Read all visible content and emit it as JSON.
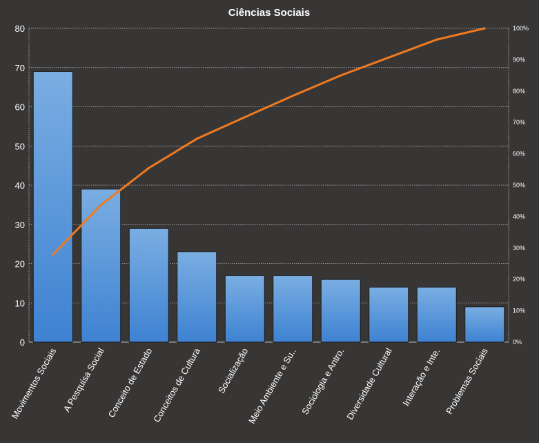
{
  "chart_data": {
    "type": "bar",
    "title": "Ciências Sociais",
    "categories": [
      "Movimentos Sociais",
      "A Pesquisa Social",
      "Conceito de Estado",
      "Conceitos de Cultura",
      "Socialização",
      "Meio Ambiente e Su..",
      "Sociologia e Antro.",
      "Diversidade Cultural",
      "Interação e Inte.",
      "Problemas Sociais"
    ],
    "series": [
      {
        "type": "bar",
        "axis": "left",
        "values": [
          69,
          39,
          29,
          23,
          17,
          17,
          16,
          14,
          14,
          9
        ]
      },
      {
        "type": "line",
        "axis": "right",
        "values": [
          27.9,
          43.7,
          55.5,
          64.8,
          71.7,
          78.5,
          85.0,
          90.7,
          96.4,
          100.0
        ]
      }
    ],
    "y_left": {
      "ylim": [
        0,
        80
      ],
      "ticks": [
        "0",
        "10",
        "20",
        "30",
        "40",
        "50",
        "60",
        "70",
        "80"
      ]
    },
    "y_right": {
      "ylim": [
        0,
        100
      ],
      "ticks": [
        "0%",
        "10%",
        "20%",
        "30%",
        "40%",
        "50%",
        "60%",
        "70%",
        "80%",
        "90%",
        "100%"
      ]
    },
    "grid": true,
    "legend": "none",
    "colors": {
      "background": "#383635",
      "bar_top": "#7aaee2",
      "bar_bottom": "#3e82d2",
      "line": "#f07a20",
      "grid": "#bdbdbd",
      "text": "#ffffff"
    }
  }
}
